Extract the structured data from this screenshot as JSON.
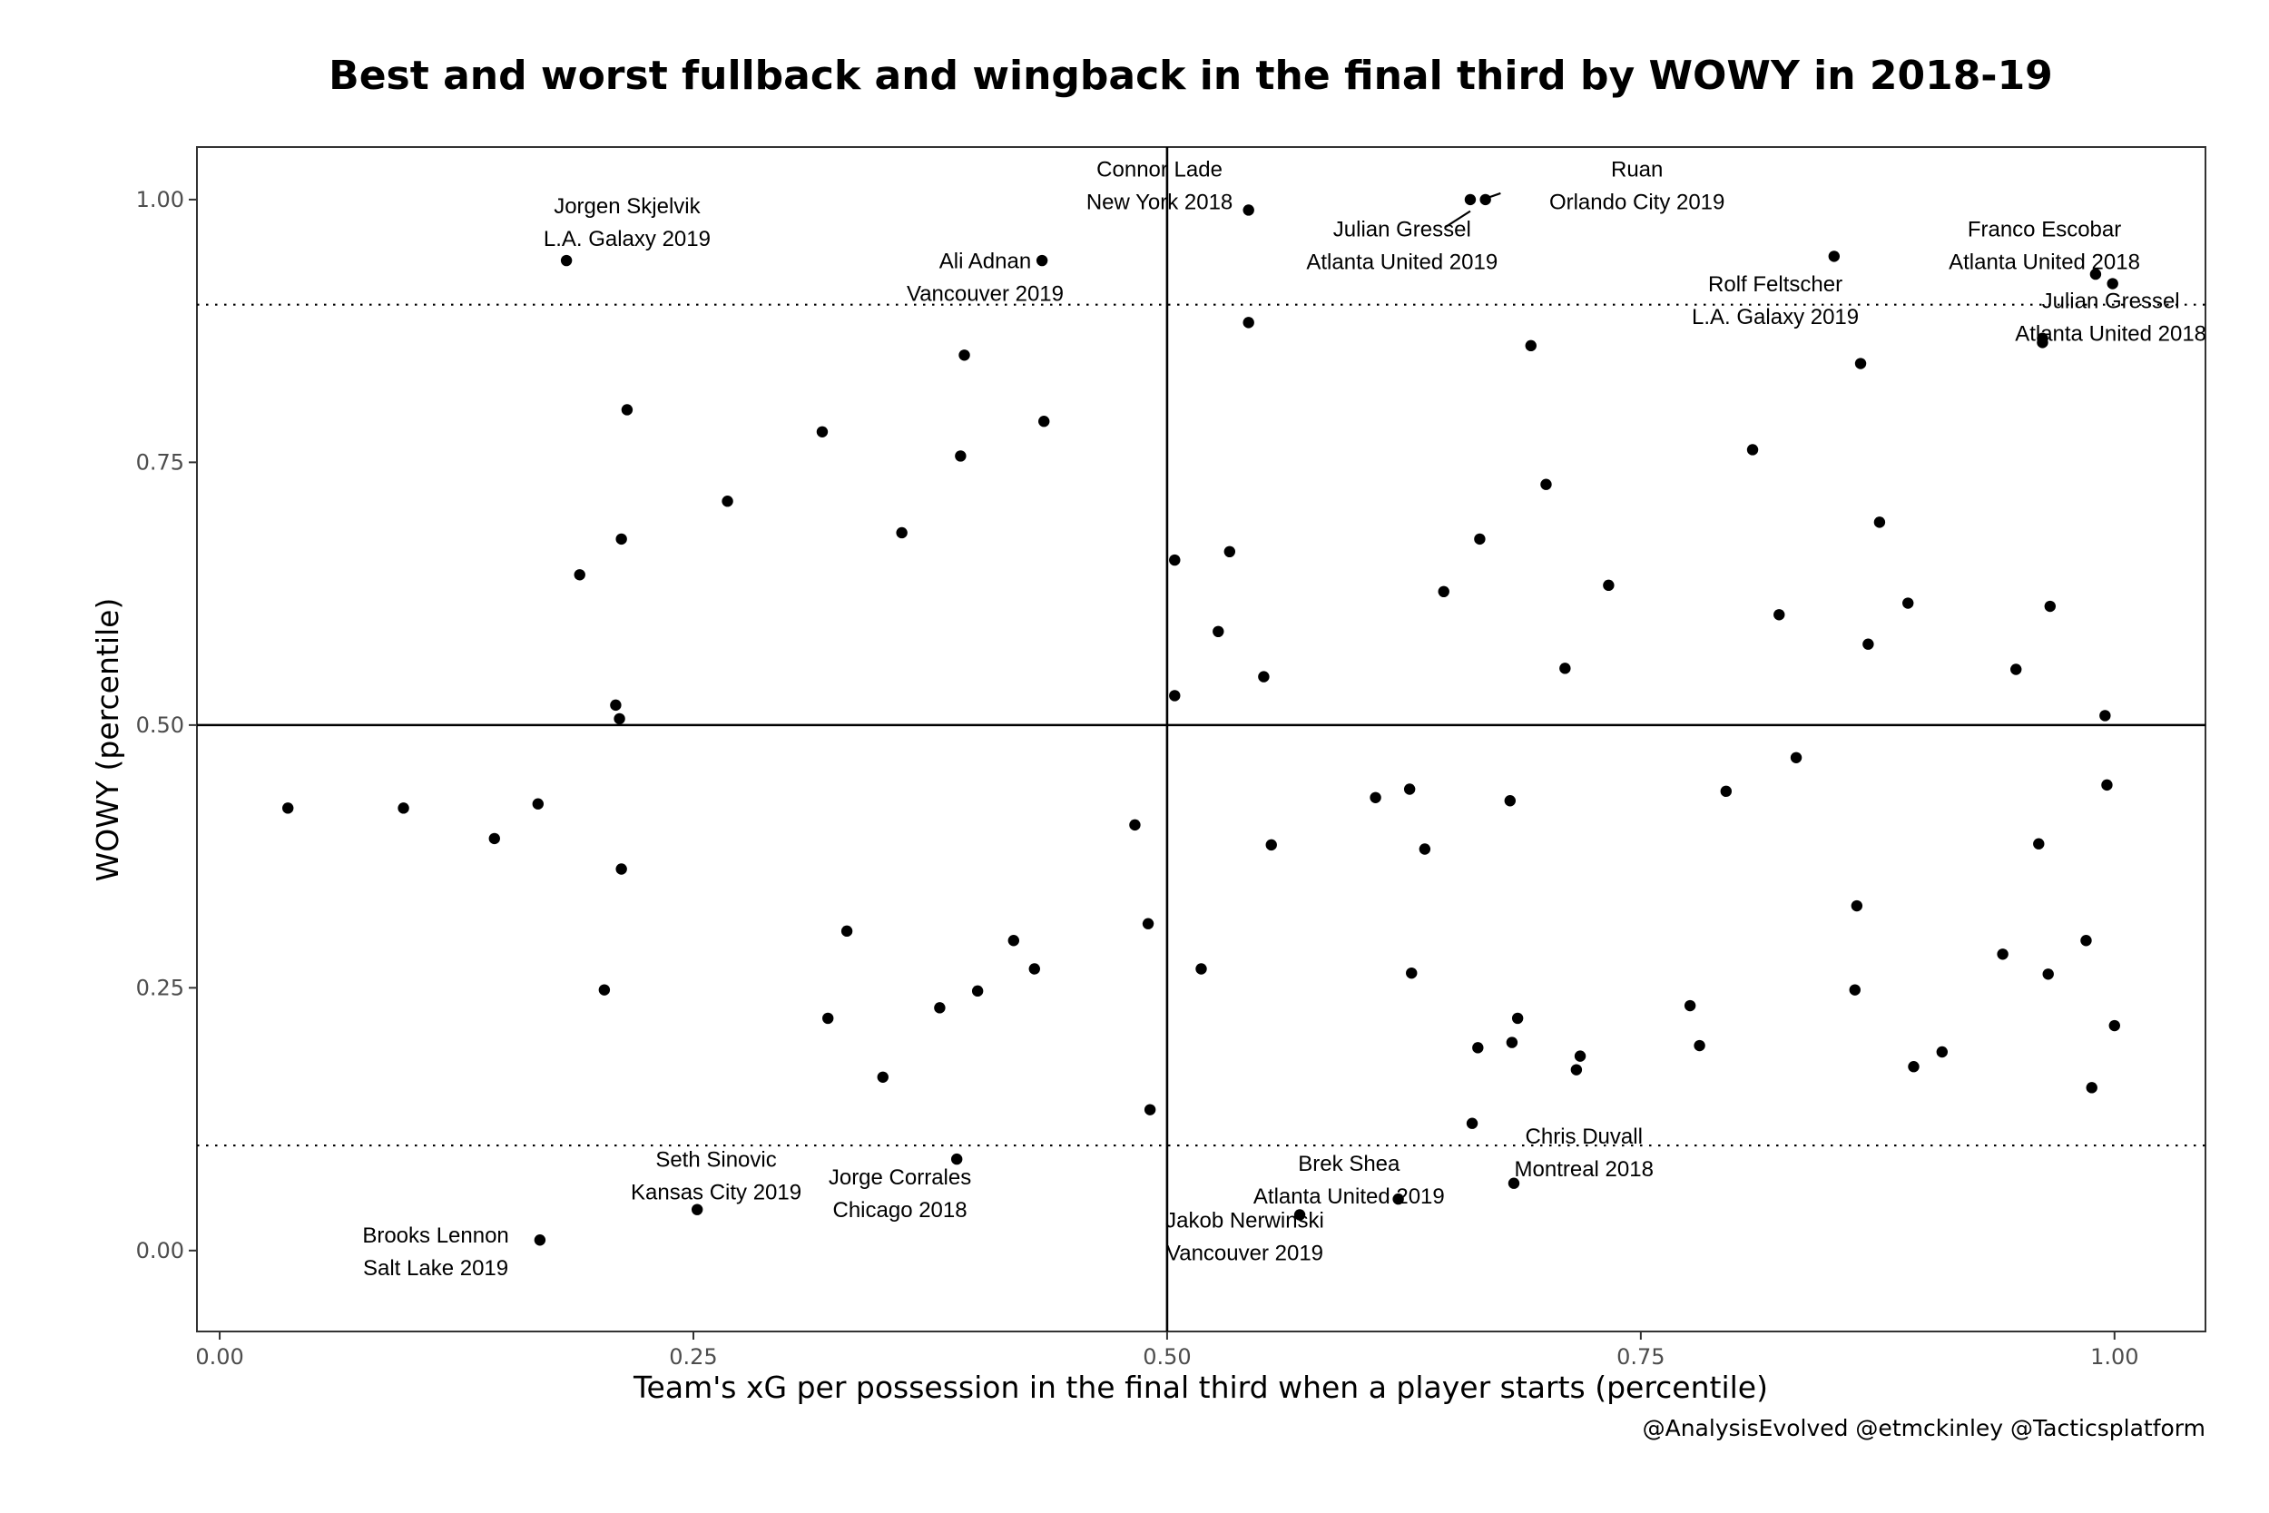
{
  "chart_data": {
    "type": "scatter",
    "title": "Best and worst fullback and wingback in the final third by WOWY in 2018-19",
    "xlabel": "Team's xG per possession in the final third when a player starts (percentile)",
    "ylabel": "WOWY (percentile)",
    "caption": "@AnalysisEvolved @etmckinley @Tacticsplatform",
    "xlim": [
      -0.012,
      1.048
    ],
    "ylim": [
      -0.077,
      1.05
    ],
    "x_ticks": [
      "0.00",
      "0.25",
      "0.50",
      "0.75",
      "1.00"
    ],
    "y_ticks": [
      "0.00",
      "0.25",
      "0.50",
      "0.75",
      "1.00"
    ],
    "grid": false,
    "reference_lines": {
      "solid_vertical_x": 0.5,
      "solid_horizontal_y": 0.5,
      "dotted_horizontal_y": [
        0.1,
        0.9
      ]
    },
    "points": [
      [
        0.036,
        0.421
      ],
      [
        0.097,
        0.421
      ],
      [
        0.145,
        0.392
      ],
      [
        0.168,
        0.425
      ],
      [
        0.169,
        0.01
      ],
      [
        0.183,
        0.942
      ],
      [
        0.19,
        0.643
      ],
      [
        0.203,
        0.248
      ],
      [
        0.209,
        0.519
      ],
      [
        0.211,
        0.506
      ],
      [
        0.212,
        0.677
      ],
      [
        0.212,
        0.363
      ],
      [
        0.215,
        0.8
      ],
      [
        0.268,
        0.713
      ],
      [
        0.252,
        0.039
      ],
      [
        0.318,
        0.779
      ],
      [
        0.321,
        0.221
      ],
      [
        0.331,
        0.304
      ],
      [
        0.35,
        0.165
      ],
      [
        0.36,
        0.683
      ],
      [
        0.38,
        0.231
      ],
      [
        0.389,
        0.087
      ],
      [
        0.391,
        0.756
      ],
      [
        0.393,
        0.852
      ],
      [
        0.4,
        0.247
      ],
      [
        0.419,
        0.295
      ],
      [
        0.43,
        0.268
      ],
      [
        0.434,
        0.942
      ],
      [
        0.435,
        0.789
      ],
      [
        0.483,
        0.405
      ],
      [
        0.49,
        0.311
      ],
      [
        0.491,
        0.134
      ],
      [
        0.504,
        0.528
      ],
      [
        0.504,
        0.657
      ],
      [
        0.518,
        0.268
      ],
      [
        0.527,
        0.589
      ],
      [
        0.533,
        0.665
      ],
      [
        0.543,
        0.99
      ],
      [
        0.543,
        0.883
      ],
      [
        0.551,
        0.546
      ],
      [
        0.555,
        0.386
      ],
      [
        0.57,
        0.034
      ],
      [
        0.61,
        0.431
      ],
      [
        0.622,
        0.049
      ],
      [
        0.628,
        0.439
      ],
      [
        0.629,
        0.264
      ],
      [
        0.636,
        0.382
      ],
      [
        0.646,
        0.627
      ],
      [
        0.66,
        1.0
      ],
      [
        0.661,
        0.121
      ],
      [
        0.664,
        0.193
      ],
      [
        0.665,
        0.677
      ],
      [
        0.668,
        1.0
      ],
      [
        0.681,
        0.428
      ],
      [
        0.682,
        0.198
      ],
      [
        0.683,
        0.064
      ],
      [
        0.685,
        0.221
      ],
      [
        0.692,
        0.861
      ],
      [
        0.7,
        0.729
      ],
      [
        0.71,
        0.554
      ],
      [
        0.716,
        0.172
      ],
      [
        0.718,
        0.185
      ],
      [
        0.733,
        0.633
      ],
      [
        0.776,
        0.233
      ],
      [
        0.781,
        0.195
      ],
      [
        0.795,
        0.437
      ],
      [
        0.809,
        0.762
      ],
      [
        0.823,
        0.605
      ],
      [
        0.832,
        0.469
      ],
      [
        0.852,
        0.946
      ],
      [
        0.863,
        0.248
      ],
      [
        0.864,
        0.328
      ],
      [
        0.866,
        0.844
      ],
      [
        0.87,
        0.577
      ],
      [
        0.876,
        0.693
      ],
      [
        0.891,
        0.616
      ],
      [
        0.894,
        0.175
      ],
      [
        0.909,
        0.189
      ],
      [
        0.941,
        0.282
      ],
      [
        0.948,
        0.553
      ],
      [
        0.96,
        0.387
      ],
      [
        0.962,
        0.868
      ],
      [
        0.962,
        0.864
      ],
      [
        0.965,
        0.263
      ],
      [
        0.966,
        0.613
      ],
      [
        0.985,
        0.295
      ],
      [
        0.988,
        0.155
      ],
      [
        0.99,
        0.929
      ],
      [
        0.995,
        0.509
      ],
      [
        0.996,
        0.443
      ],
      [
        0.999,
        0.92
      ],
      [
        1.0,
        0.214
      ]
    ],
    "annotations": [
      {
        "lines": [
          "Jorgen Skjelvik",
          "L.A. Galaxy 2019"
        ],
        "x": 0.215,
        "y": 0.979
      },
      {
        "lines": [
          "Ali Adnan",
          "Vancouver 2019"
        ],
        "x": 0.404,
        "y": 0.927
      },
      {
        "lines": [
          "Connor Lade",
          "New York 2018"
        ],
        "x": 0.496,
        "y": 1.014
      },
      {
        "lines": [
          "Julian Gressel",
          "Atlanta United 2019"
        ],
        "x": 0.624,
        "y": 0.957
      },
      {
        "lines": [
          "Ruan",
          "Orlando City 2019"
        ],
        "x": 0.748,
        "y": 1.014
      },
      {
        "lines": [
          "Rolf Feltscher",
          "L.A. Galaxy 2019"
        ],
        "x": 0.821,
        "y": 0.905
      },
      {
        "lines": [
          "Franco Escobar",
          "Atlanta United 2018"
        ],
        "x": 0.963,
        "y": 0.957
      },
      {
        "lines": [
          "Julian Gressel",
          "Atlanta United 2018"
        ],
        "x": 0.998,
        "y": 0.889
      },
      {
        "lines": [
          "Seth Sinovic",
          "Kansas City 2019"
        ],
        "x": 0.262,
        "y": 0.072
      },
      {
        "lines": [
          "Jorge Corrales",
          "Chicago 2018"
        ],
        "x": 0.359,
        "y": 0.055
      },
      {
        "lines": [
          "Brooks Lennon",
          "Salt Lake 2019"
        ],
        "x": 0.114,
        "y": 0.0
      },
      {
        "lines": [
          "Jakob Nerwinski",
          "Vancouver 2019"
        ],
        "x": 0.541,
        "y": 0.014
      },
      {
        "lines": [
          "Brek Shea",
          "Atlanta United 2019"
        ],
        "x": 0.596,
        "y": 0.068
      },
      {
        "lines": [
          "Chris Duvall",
          "Montreal 2018"
        ],
        "x": 0.72,
        "y": 0.094
      }
    ],
    "leader_lines": [
      {
        "from": [
          0.647,
          0.974
        ],
        "to": [
          0.66,
          0.989
        ]
      },
      {
        "from": [
          0.676,
          1.006
        ],
        "to": [
          0.668,
          1.001
        ]
      }
    ]
  }
}
